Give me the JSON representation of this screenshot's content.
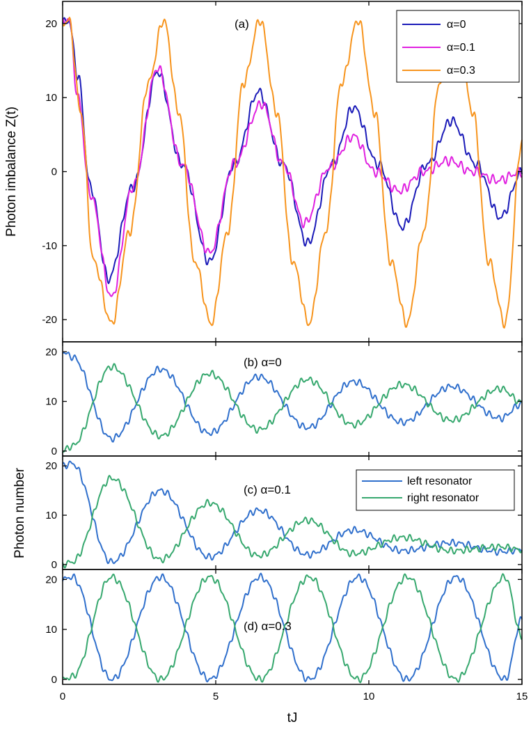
{
  "figure": {
    "xlabel": "tJ",
    "ylabel_top": "Photon imbalance Z(t)",
    "ylabel_bottom": "Photon number"
  },
  "chart_data": [
    {
      "id": "a",
      "type": "line",
      "title": "(a)",
      "xlabel": "tJ",
      "ylabel": "Photon imbalance Z(t)",
      "xlim": [
        0,
        15
      ],
      "ylim": [
        -23,
        23
      ],
      "yticks": [
        -20,
        -10,
        0,
        10,
        20
      ],
      "legend": "top-right",
      "series": [
        {
          "name": "α=0",
          "color": "#1a1ab8",
          "x": [
            0,
            0.2,
            0.5,
            0.9,
            1.5,
            2.3,
            3.1,
            3.9,
            4.8,
            5.6,
            6.4,
            7.2,
            8.0,
            8.8,
            9.5,
            10.3,
            11.1,
            11.9,
            12.7,
            13.5,
            14.3,
            15
          ],
          "y": [
            20,
            20.5,
            13,
            -2,
            -14.5,
            -2,
            13.5,
            1,
            -12.2,
            1,
            10.8,
            1,
            -9.7,
            1,
            8.7,
            1,
            -7.5,
            1,
            6.9,
            1,
            -6.2,
            0
          ]
        },
        {
          "name": "α=0.1",
          "color": "#e020e0",
          "x": [
            0,
            0.2,
            0.5,
            0.9,
            1.6,
            2.3,
            3.1,
            3.9,
            4.8,
            5.6,
            6.5,
            7.2,
            7.9,
            8.7,
            9.5,
            10.2,
            11.0,
            11.8,
            12.6,
            13.4,
            14.2,
            15
          ],
          "y": [
            20,
            20.8,
            10,
            -3,
            -17,
            -2,
            14,
            1,
            -11,
            1,
            9.2,
            1,
            -7,
            0.5,
            4.8,
            0,
            -2.6,
            0,
            1.5,
            0,
            -1.2,
            0
          ]
        },
        {
          "name": "α=0.3",
          "color": "#f7941d",
          "x": [
            0,
            0.2,
            0.6,
            1.0,
            1.6,
            2.2,
            2.8,
            3.3,
            3.8,
            4.3,
            4.85,
            5.4,
            5.9,
            6.45,
            7.0,
            7.5,
            8.05,
            8.6,
            9.1,
            9.65,
            10.2,
            10.7,
            11.25,
            11.8,
            12.3,
            12.85,
            13.4,
            13.9,
            14.45,
            15
          ],
          "y": [
            20,
            20.5,
            8,
            -12,
            -20.5,
            -8,
            12,
            20.5,
            8,
            -12,
            -20.5,
            -8,
            12,
            20.5,
            8,
            -12,
            -20.5,
            -8,
            12,
            20.5,
            8,
            -12,
            -20.5,
            -8,
            12,
            20.5,
            8,
            -12,
            -20.5,
            4
          ]
        }
      ]
    },
    {
      "id": "b",
      "type": "line",
      "title": "(b) α=0",
      "xlim": [
        0,
        15
      ],
      "ylim": [
        -1,
        22
      ],
      "yticks": [
        0,
        10,
        20
      ],
      "series": [
        {
          "name": "left resonator",
          "color": "#2f6fcc",
          "x": [
            0,
            0.3,
            1.6,
            3.2,
            4.8,
            6.4,
            8.0,
            9.5,
            11.1,
            12.7,
            14.3,
            15
          ],
          "y": [
            20,
            19,
            2.5,
            16.5,
            3.6,
            15,
            4.7,
            14,
            5.8,
            13,
            6.6,
            9.5
          ]
        },
        {
          "name": "right resonator",
          "color": "#36a86e",
          "x": [
            0,
            0.3,
            1.6,
            3.2,
            4.8,
            6.4,
            8.0,
            9.5,
            11.1,
            12.7,
            14.3,
            15
          ],
          "y": [
            0,
            1,
            17,
            3,
            15.6,
            4.3,
            14.4,
            5.3,
            13.4,
            6.2,
            12.6,
            9.8
          ]
        }
      ]
    },
    {
      "id": "c",
      "type": "line",
      "title": "(c) α=0.1",
      "xlim": [
        0,
        15
      ],
      "ylim": [
        -1,
        22
      ],
      "yticks": [
        0,
        10,
        20
      ],
      "legend": "top-right",
      "series": [
        {
          "name": "left resonator",
          "color": "#2f6fcc",
          "x": [
            0,
            0.3,
            1.6,
            3.2,
            4.8,
            6.4,
            8.0,
            9.5,
            11.1,
            12.7,
            14.3,
            15
          ],
          "y": [
            20,
            20.5,
            0.5,
            15,
            1.5,
            11,
            2,
            7,
            2.8,
            4.4,
            2.6,
            3
          ]
        },
        {
          "name": "right resonator",
          "color": "#36a86e",
          "x": [
            0,
            0.3,
            1.6,
            3.2,
            4.8,
            6.4,
            8.0,
            9.5,
            11.1,
            12.7,
            14.3,
            15
          ],
          "y": [
            0,
            0.5,
            17.5,
            1,
            12.5,
            1.8,
            9,
            2.2,
            5.5,
            2.8,
            3.6,
            3
          ]
        }
      ]
    },
    {
      "id": "d",
      "type": "line",
      "title": "(d) α=0.3",
      "xlim": [
        0,
        15
      ],
      "ylim": [
        -1,
        22
      ],
      "yticks": [
        0,
        10,
        20
      ],
      "series": [
        {
          "name": "left resonator",
          "color": "#2f6fcc",
          "x": [
            0,
            0.3,
            1.6,
            3.2,
            4.8,
            6.45,
            8.05,
            9.65,
            11.25,
            12.85,
            14.45,
            15
          ],
          "y": [
            20,
            20.5,
            0,
            20.5,
            0,
            20.5,
            0,
            20.5,
            0,
            20.5,
            0,
            12
          ]
        },
        {
          "name": "right resonator",
          "color": "#36a86e",
          "x": [
            0,
            0.3,
            1.6,
            3.2,
            4.8,
            6.45,
            8.05,
            9.65,
            11.25,
            12.85,
            14.45,
            15
          ],
          "y": [
            0,
            0.5,
            20.5,
            0,
            20.5,
            0,
            20.5,
            0,
            20.5,
            0,
            20.5,
            8.5
          ]
        }
      ]
    }
  ],
  "xticks": [
    0,
    5,
    10,
    15
  ]
}
